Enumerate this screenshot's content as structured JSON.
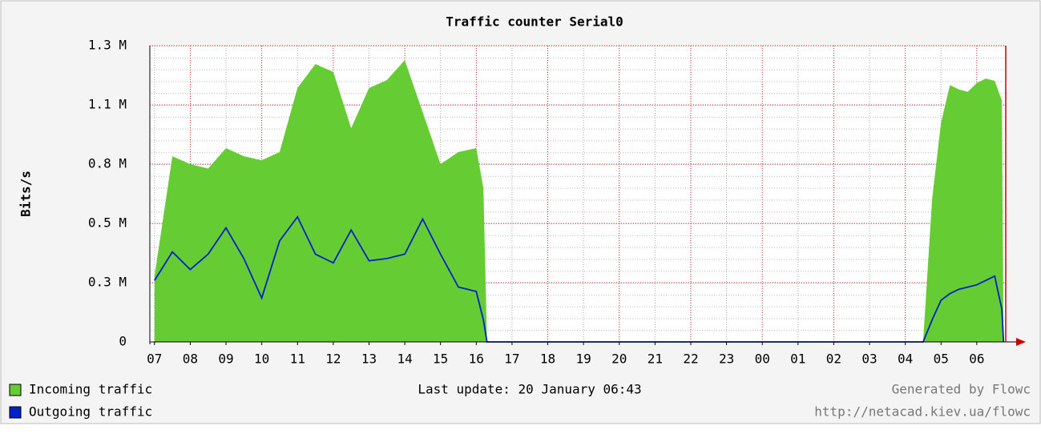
{
  "chart_data": {
    "type": "area",
    "title": "Traffic counter Serial0",
    "y_label": "Bits/s",
    "annotations": [
      "Last update: 20 January 06:43",
      "Generated by Flowc",
      "http://netacad.kiev.ua/flowc"
    ],
    "x": [
      0,
      0.5,
      1,
      1.5,
      2,
      2.5,
      3,
      3.5,
      4,
      4.5,
      5,
      5.5,
      6,
      6.5,
      7,
      7.5,
      8,
      8.5,
      9,
      9.2,
      9.3,
      12,
      15,
      18,
      21.5,
      21.75,
      22,
      22.25,
      22.5,
      22.75,
      23,
      23.25,
      23.5,
      23.7,
      23.75
    ],
    "series": [
      {
        "name": "Incoming traffic",
        "color": "#66cc33",
        "values": [
          300000,
          846000,
          810000,
          790000,
          883000,
          846000,
          828000,
          865000,
          1157000,
          1266000,
          1230000,
          974000,
          1157000,
          1193000,
          1284000,
          1047000,
          810000,
          865000,
          883000,
          700000,
          0,
          0,
          0,
          0,
          0,
          650000,
          1000000,
          1170000,
          1150000,
          1140000,
          1180000,
          1200000,
          1190000,
          1100000,
          0
        ]
      },
      {
        "name": "Outgoing traffic",
        "color": "#0022cc",
        "values": [
          280000,
          410000,
          330000,
          400000,
          520000,
          380000,
          200000,
          460000,
          570000,
          400000,
          360000,
          510000,
          370000,
          380000,
          400000,
          560000,
          400000,
          250000,
          230000,
          100000,
          0,
          0,
          0,
          0,
          0,
          100000,
          190000,
          220000,
          240000,
          250000,
          260000,
          280000,
          300000,
          150000,
          0
        ]
      }
    ],
    "xlim": [
      -0.13,
      23.81
    ],
    "xticks": [
      {
        "value": 0,
        "label": "07"
      },
      {
        "value": 1,
        "label": "08"
      },
      {
        "value": 2,
        "label": "09"
      },
      {
        "value": 3,
        "label": "10"
      },
      {
        "value": 4,
        "label": "11"
      },
      {
        "value": 5,
        "label": "12"
      },
      {
        "value": 6,
        "label": "13"
      },
      {
        "value": 7,
        "label": "14"
      },
      {
        "value": 8,
        "label": "15"
      },
      {
        "value": 9,
        "label": "16"
      },
      {
        "value": 10,
        "label": "17"
      },
      {
        "value": 11,
        "label": "18"
      },
      {
        "value": 12,
        "label": "19"
      },
      {
        "value": 13,
        "label": "20"
      },
      {
        "value": 14,
        "label": "21"
      },
      {
        "value": 15,
        "label": "22"
      },
      {
        "value": 16,
        "label": "23"
      },
      {
        "value": 17,
        "label": "00"
      },
      {
        "value": 18,
        "label": "01"
      },
      {
        "value": 19,
        "label": "02"
      },
      {
        "value": 20,
        "label": "03"
      },
      {
        "value": 21,
        "label": "04"
      },
      {
        "value": 22,
        "label": "05"
      },
      {
        "value": 23,
        "label": "06"
      }
    ],
    "ylim": [
      0,
      1350000
    ],
    "yticks": [
      0,
      {
        "value": 270000,
        "label": "0.3 M"
      },
      {
        "value": 540000,
        "label": "0.5 M"
      },
      {
        "value": 810000,
        "label": "0.8 M"
      },
      {
        "value": 1080000,
        "label": "1.1 M"
      },
      {
        "value": 1350000,
        "label": "1.3 M"
      }
    ],
    "grid": true
  }
}
